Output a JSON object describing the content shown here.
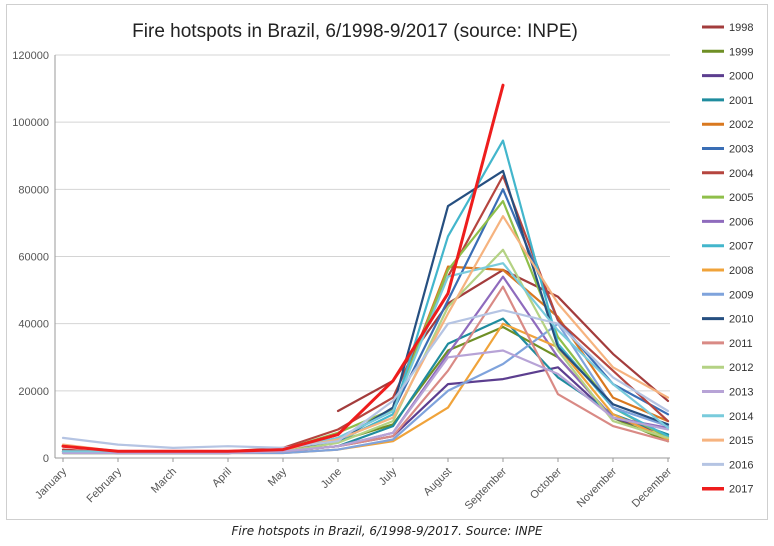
{
  "caption": "Fire hotspots in Brazil, 6/1998-9/2017. Source: INPE",
  "chart_data": {
    "type": "line",
    "title": "Fire hotspots in Brazil, 6/1998-9/2017 (source: INPE)",
    "xlabel": "",
    "ylabel": "",
    "ylim": [
      0,
      120000
    ],
    "yticks": [
      "0",
      "20000",
      "40000",
      "60000",
      "80000",
      "100000",
      "120000"
    ],
    "grid": "horizontal",
    "legend_position": "right",
    "categories": [
      "January",
      "February",
      "March",
      "April",
      "May",
      "June",
      "July",
      "August",
      "September",
      "October",
      "November",
      "December"
    ],
    "series": [
      {
        "name": "1998",
        "color": "#a33c3c",
        "values": [
          null,
          null,
          null,
          null,
          null,
          14000,
          23000,
          46000,
          56000,
          48000,
          31000,
          17000
        ]
      },
      {
        "name": "1999",
        "color": "#6f8f25",
        "values": [
          1500,
          1500,
          1500,
          1500,
          2500,
          5000,
          10000,
          32000,
          39000,
          30000,
          12000,
          5000
        ]
      },
      {
        "name": "2000",
        "color": "#5c3e8f",
        "values": [
          2000,
          1500,
          1500,
          1500,
          2000,
          3500,
          6500,
          22000,
          23500,
          27000,
          12000,
          7000
        ]
      },
      {
        "name": "2001",
        "color": "#1f8c9e",
        "values": [
          1500,
          1500,
          1500,
          1500,
          2000,
          3500,
          9500,
          34000,
          41500,
          24000,
          13000,
          7000
        ]
      },
      {
        "name": "2002",
        "color": "#d9781f",
        "values": [
          2000,
          1500,
          1500,
          1500,
          2500,
          5500,
          14500,
          57000,
          56000,
          42000,
          18000,
          11000
        ]
      },
      {
        "name": "2003",
        "color": "#3a6eb5",
        "values": [
          2000,
          1500,
          1500,
          1500,
          2500,
          6000,
          14000,
          47000,
          80000,
          41000,
          22000,
          13000
        ]
      },
      {
        "name": "2004",
        "color": "#b5453f",
        "values": [
          2500,
          1500,
          1500,
          2000,
          3000,
          8500,
          18000,
          54000,
          84000,
          41000,
          26000,
          11000
        ]
      },
      {
        "name": "2005",
        "color": "#8fbf4a",
        "values": [
          1500,
          1500,
          2000,
          1500,
          2500,
          7500,
          14500,
          56000,
          76500,
          36000,
          15000,
          6000
        ]
      },
      {
        "name": "2006",
        "color": "#8f6bbd",
        "values": [
          2000,
          1500,
          1500,
          1500,
          2000,
          3500,
          7500,
          31000,
          54000,
          30000,
          12000,
          9000
        ]
      },
      {
        "name": "2007",
        "color": "#43b6cc",
        "values": [
          2000,
          1500,
          1500,
          1500,
          2500,
          5000,
          13000,
          66000,
          94500,
          34000,
          15000,
          6500
        ]
      },
      {
        "name": "2008",
        "color": "#f0a33a",
        "values": [
          1500,
          1500,
          1500,
          1500,
          1500,
          2500,
          5000,
          15000,
          40000,
          33000,
          13000,
          5500
        ]
      },
      {
        "name": "2009",
        "color": "#7fa3dc",
        "values": [
          1500,
          1500,
          1500,
          1500,
          1500,
          2500,
          5500,
          20000,
          28000,
          40000,
          15000,
          9500
        ]
      },
      {
        "name": "2010",
        "color": "#264f80",
        "values": [
          2000,
          1500,
          1500,
          1500,
          2500,
          5000,
          15000,
          75000,
          85500,
          33000,
          16000,
          10000
        ]
      },
      {
        "name": "2011",
        "color": "#d98a85",
        "values": [
          2000,
          1500,
          1500,
          1500,
          2000,
          3500,
          6500,
          26000,
          51000,
          19000,
          9500,
          5000
        ]
      },
      {
        "name": "2012",
        "color": "#b4d284",
        "values": [
          1500,
          1500,
          1500,
          1500,
          2000,
          4500,
          11000,
          45000,
          62000,
          32000,
          11000,
          6000
        ]
      },
      {
        "name": "2013",
        "color": "#b7a3d6",
        "values": [
          1500,
          1500,
          1500,
          1500,
          2000,
          3500,
          7500,
          30000,
          32000,
          25000,
          12000,
          8500
        ]
      },
      {
        "name": "2014",
        "color": "#79cbdc",
        "values": [
          2000,
          2000,
          2000,
          2000,
          2500,
          6000,
          14000,
          54000,
          58000,
          38000,
          22000,
          9000
        ]
      },
      {
        "name": "2015",
        "color": "#f6b37f",
        "values": [
          4000,
          2000,
          2000,
          2000,
          2500,
          5500,
          12000,
          43000,
          72000,
          46000,
          27000,
          18000
        ]
      },
      {
        "name": "2016",
        "color": "#b5c4e3",
        "values": [
          6000,
          4000,
          3000,
          3500,
          3000,
          5000,
          17000,
          40000,
          44000,
          40000,
          24000,
          14000
        ]
      },
      {
        "name": "2017",
        "color": "#ee1d1d",
        "values": [
          3500,
          2000,
          2000,
          2000,
          2500,
          7000,
          23000,
          49000,
          111000,
          null,
          null,
          null
        ]
      }
    ]
  }
}
